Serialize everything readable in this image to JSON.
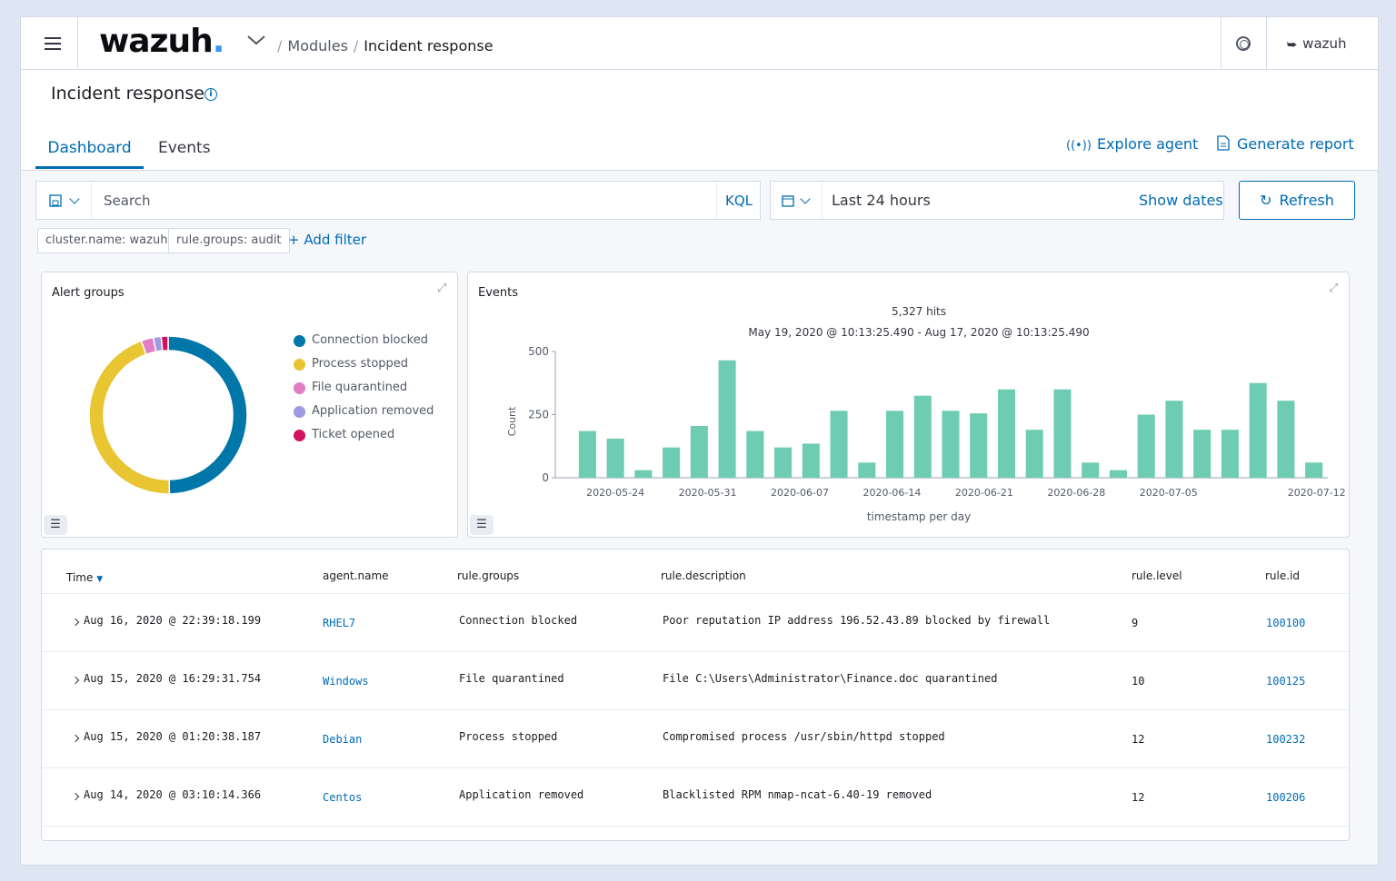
{
  "header": {
    "logo_text": "wazuh",
    "breadcrumb": [
      "Modules",
      "Incident response"
    ],
    "user": "wazuh"
  },
  "page": {
    "title": "Incident response",
    "tabs": [
      {
        "label": "Dashboard",
        "active": true
      },
      {
        "label": "Events",
        "active": false
      }
    ],
    "actions": {
      "explore_agent": "Explore agent",
      "generate_report": "Generate report"
    }
  },
  "query": {
    "search_placeholder": "Search",
    "language": "KQL",
    "time_range": "Last 24 hours",
    "show_dates": "Show dates",
    "refresh": "Refresh"
  },
  "filters": {
    "pills": [
      "cluster.name: wazuh",
      "rule.groups: audit"
    ],
    "add_filter": "+ Add filter"
  },
  "alert_groups": {
    "title": "Alert groups",
    "legend": [
      "Connection blocked",
      "Process stopped",
      "File quarantined",
      "Application removed",
      "Ticket opened"
    ],
    "colors": [
      "#0077a8",
      "#e8c531",
      "#e07dc5",
      "#9d9ae0",
      "#d1135e"
    ],
    "chart_data": {
      "type": "pie",
      "labels": [
        "Connection blocked",
        "Process stopped",
        "File quarantined",
        "Application removed",
        "Ticket opened"
      ],
      "values": [
        49.5,
        44.5,
        2.5,
        1.6,
        1.4
      ]
    }
  },
  "events_panel": {
    "title": "Events",
    "hits": "5,327 hits",
    "range": "May 19, 2020 @ 10:13:25.490 - Aug 17, 2020 @ 10:13:25.490",
    "bar_color": "#6dccb1",
    "chart_data": {
      "type": "bar",
      "ylabel": "Count",
      "xlabel": "timestamp per day",
      "ylim": [
        0,
        500
      ],
      "yticks": [
        "500",
        "250",
        "0"
      ],
      "xticks": [
        "2020-05-24",
        "2020-05-31",
        "2020-06-07",
        "2020-06-14",
        "2020-06-21",
        "2020-06-28",
        "2020-07-05",
        "2020-07-12"
      ],
      "values": [
        185,
        155,
        30,
        120,
        205,
        465,
        185,
        120,
        135,
        265,
        60,
        265,
        325,
        265,
        255,
        350,
        190,
        350,
        60,
        30,
        250,
        305,
        190,
        190,
        375,
        305,
        60
      ]
    }
  },
  "table": {
    "columns": [
      "Time",
      "agent.name",
      "rule.groups",
      "rule.description",
      "rule.level",
      "rule.id"
    ],
    "rows": [
      {
        "time": "Aug 16, 2020 @ 22:39:18.199",
        "agent": "RHEL7",
        "group": "Connection blocked",
        "desc": "Poor reputation IP address 196.52.43.89 blocked by firewall",
        "level": "9",
        "id": "100100"
      },
      {
        "time": "Aug 15, 2020 @ 16:29:31.754",
        "agent": "Windows",
        "group": "File quarantined",
        "desc": "File C:\\Users\\Administrator\\Finance.doc quarantined",
        "level": "10",
        "id": "100125"
      },
      {
        "time": "Aug 15, 2020 @ 01:20:38.187",
        "agent": "Debian",
        "group": "Process stopped",
        "desc": "Compromised process /usr/sbin/httpd stopped",
        "level": "12",
        "id": "100232"
      },
      {
        "time": "Aug 14, 2020 @ 03:10:14.366",
        "agent": "Centos",
        "group": "Application removed",
        "desc": "Blacklisted RPM nmap-ncat-6.40-19 removed",
        "level": "12",
        "id": "100206"
      }
    ]
  }
}
